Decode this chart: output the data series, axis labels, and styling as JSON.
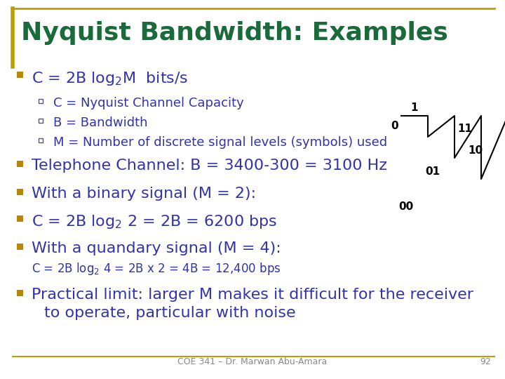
{
  "title": "Nyquist Bandwidth: Examples",
  "title_color": "#1a6b3a",
  "border_color": "#b8a000",
  "bg_color": "#ffffff",
  "bullet_color": "#b8860b",
  "sub_bullet_color": "#555588",
  "text_color": "#3333aa",
  "footer_text": "COE 341 – Dr. Marwan Abu-Amara",
  "footer_page": "92",
  "title_fontsize": 26,
  "bullet_fontsize": 16,
  "sub_fontsize": 13,
  "small_fontsize": 12,
  "tree_color": "#000000"
}
